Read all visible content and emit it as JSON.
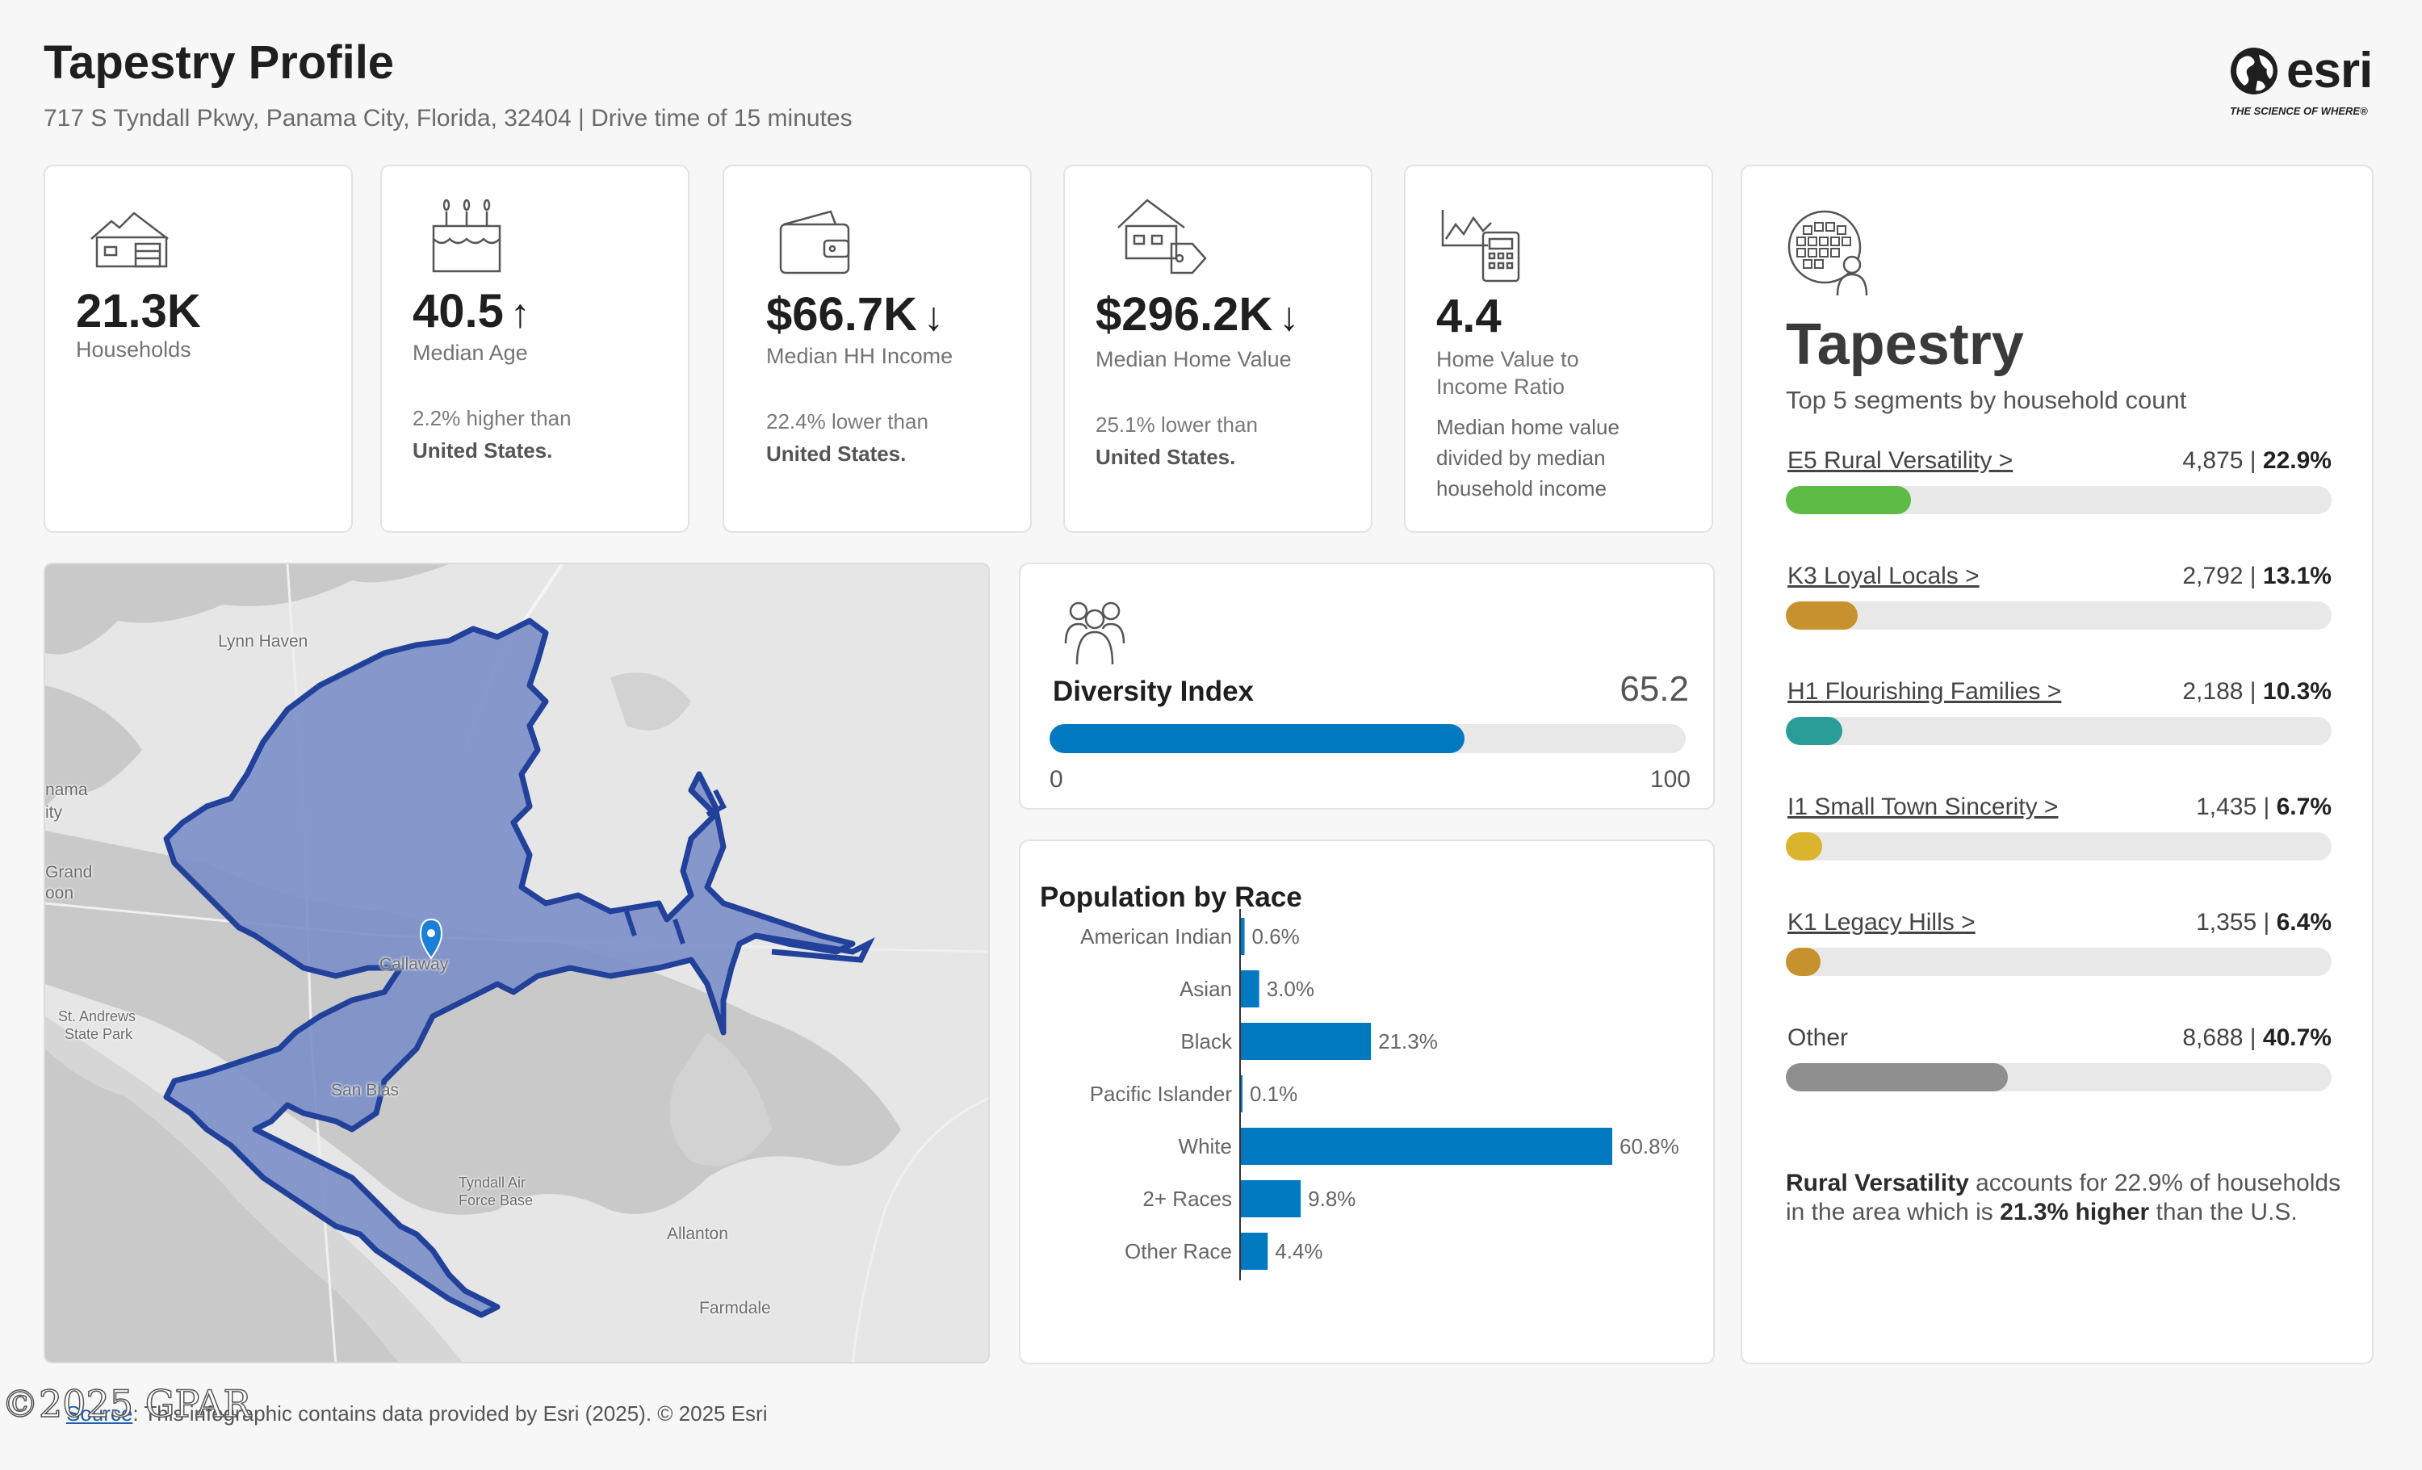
{
  "header": {
    "title": "Tapestry Profile",
    "subtitle": "717 S Tyndall Pkwy, Panama City, Florida, 32404 | Drive time of 15 minutes"
  },
  "logo": {
    "word": "esri",
    "tagline": "THE SCIENCE OF WHERE®",
    "icon": "globe-icon"
  },
  "stats": [
    {
      "icon": "house-icon",
      "value": "21.3K",
      "arrow": "",
      "label": "Households",
      "note_line1": "",
      "note_line2": ""
    },
    {
      "icon": "birthday-cake-icon",
      "value": "40.5",
      "arrow": "↑",
      "label": "Median Age",
      "note_line1": "2.2% higher than",
      "note_line2": "United States."
    },
    {
      "icon": "wallet-icon",
      "value": "$66.7K",
      "arrow": "↓",
      "label": "Median HH Income",
      "note_line1": "22.4% lower than",
      "note_line2": "United States."
    },
    {
      "icon": "house-price-tag-icon",
      "value": "$296.2K",
      "arrow": "↓",
      "label": "Median Home Value",
      "note_line1": "25.1% lower than",
      "note_line2": "United States."
    },
    {
      "icon": "chart-calculator-icon",
      "value": "4.4",
      "arrow": "",
      "label_line1": "Home Value to",
      "label_line2": "Income Ratio",
      "desc": [
        "Median home value",
        "divided by median",
        "household income"
      ]
    }
  ],
  "map": {
    "labels": [
      "Lynn Haven",
      "nama",
      "ity",
      "Grand",
      "oon",
      "St. Andrews",
      "State Park",
      "Callaway",
      "San Blas",
      "Tyndall Air",
      "Force Base",
      "Allanton",
      "Farmdale"
    ],
    "colors": {
      "land": "#e6e6e6",
      "water": "#c9c9c9",
      "area_fill": "#7b8fc8",
      "area_stroke": "#22419a",
      "pin": "#1a7fd6"
    }
  },
  "diversity": {
    "icon": "people-group-icon",
    "title": "Diversity Index",
    "value": "65.2",
    "fraction": 0.652,
    "min": "0",
    "max": "100",
    "color": "#0079c1"
  },
  "race": {
    "title": "Population by Race",
    "color": "#0079c1"
  },
  "chart_data": {
    "type": "bar",
    "title": "Population by Race",
    "categories": [
      "American Indian",
      "Asian",
      "Black",
      "Pacific Islander",
      "White",
      "2+ Races",
      "Other Race"
    ],
    "values": [
      0.6,
      3.0,
      21.3,
      0.1,
      60.8,
      9.8,
      4.4
    ],
    "value_labels": [
      "0.6%",
      "3.0%",
      "21.3%",
      "0.1%",
      "60.8%",
      "9.8%",
      "4.4%"
    ],
    "orientation": "horizontal",
    "xlim": [
      0,
      60.8
    ]
  },
  "tapestry": {
    "icon": "segment-globe-person-icon",
    "title": "Tapestry",
    "subtitle": "Top 5 segments by household count",
    "segments": [
      {
        "name": "E5 Rural Versatility >",
        "count": "4,875",
        "pct": "22.9%",
        "share": 0.229,
        "color": "#5dbb46",
        "link": true
      },
      {
        "name": "K3 Loyal Locals >",
        "count": "2,792",
        "pct": "13.1%",
        "share": 0.131,
        "color": "#c7922d",
        "link": true
      },
      {
        "name": "H1 Flourishing Families >",
        "count": "2,188",
        "pct": "10.3%",
        "share": 0.103,
        "color": "#2a9d98",
        "link": true
      },
      {
        "name": "I1 Small Town Sincerity >",
        "count": "1,435",
        "pct": "6.7%",
        "share": 0.067,
        "color": "#d9b42c",
        "link": true
      },
      {
        "name": "K1 Legacy Hills >",
        "count": "1,355",
        "pct": "6.4%",
        "share": 0.064,
        "color": "#c7922d",
        "link": true
      },
      {
        "name": "Other",
        "count": "8,688",
        "pct": "40.7%",
        "share": 0.407,
        "color": "#8f8f8f",
        "link": false
      }
    ],
    "summary_bold1": "Rural Versatility",
    "summary_text1": " accounts for 22.9% of households in the area which is ",
    "summary_bold2": "21.3% higher",
    "summary_text2": " than the U.S."
  },
  "footer": {
    "source_link": "Source",
    "text": ": This infographic contains data provided by Esri (2025). © 2025 Esri",
    "watermark": "©2025 GPAR"
  }
}
